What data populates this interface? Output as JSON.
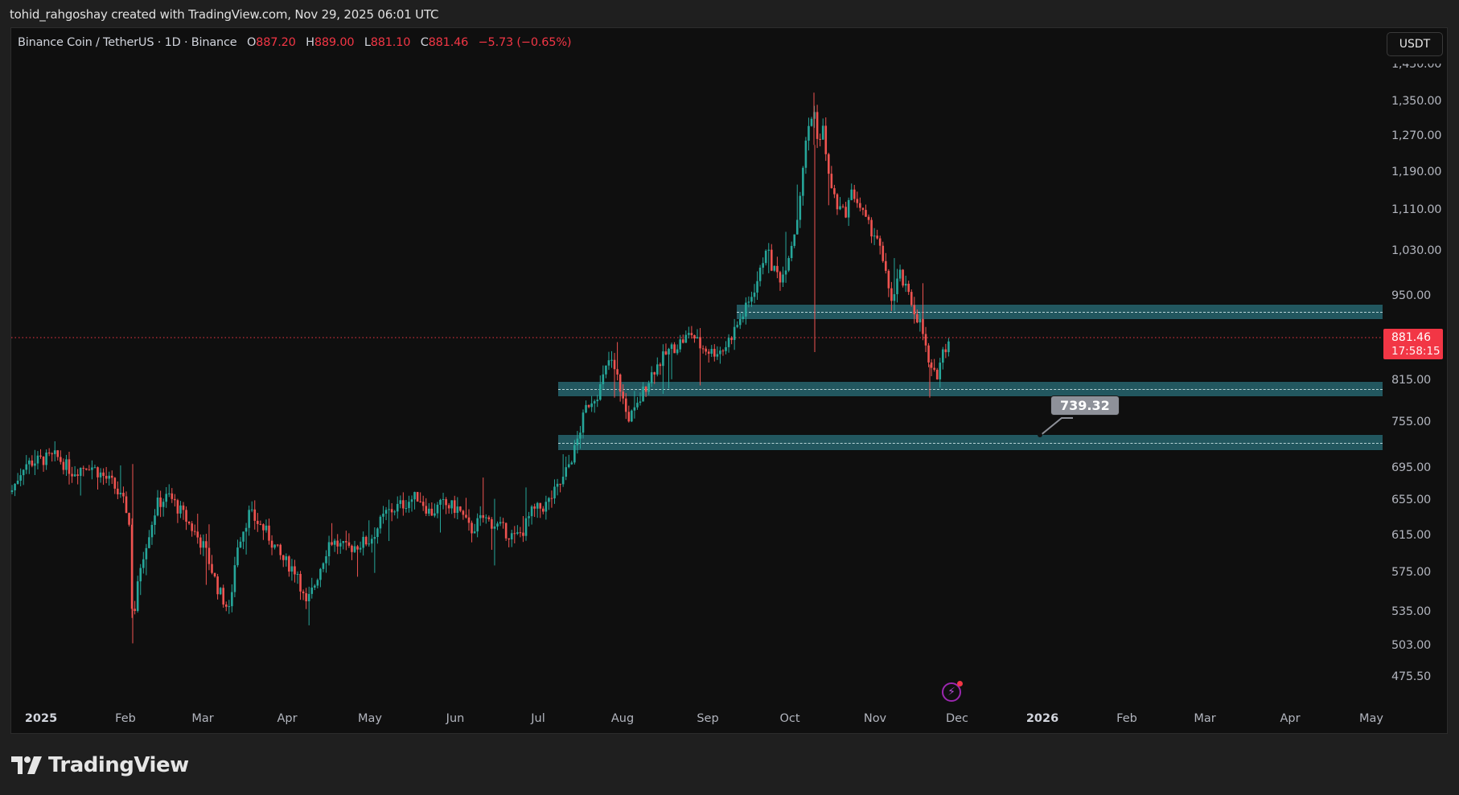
{
  "header": {
    "credit": "tohid_rahgoshay created with TradingView.com, Nov 29, 2025 06:01 UTC"
  },
  "legend": {
    "symbol": "Binance Coin / TetherUS · 1D · Binance",
    "open_label": "O",
    "open": "887.20",
    "high_label": "H",
    "high": "889.00",
    "low_label": "L",
    "low": "881.10",
    "close_label": "C",
    "close": "881.46",
    "change": "−5.73 (−0.65%)"
  },
  "currency_button": "USDT",
  "last_price": {
    "value": "881.46",
    "countdown": "17:58:15"
  },
  "colors": {
    "up": "#26a69a",
    "down": "#ef5350",
    "zone": "#22575f",
    "price_line": "#f23645",
    "background": "#0f0f0f"
  },
  "callout": {
    "label": "739.32"
  },
  "logo": {
    "text": "TradingView"
  },
  "chart_data": {
    "type": "candlestick",
    "title": "Binance Coin / TetherUS · 1D · Binance",
    "xlabel": "",
    "ylabel": "USDT",
    "price_axis_ticks": [
      "1,450.00",
      "1,350.00",
      "1,270.00",
      "1,190.00",
      "1,110.00",
      "1,030.00",
      "950.00",
      "815.00",
      "755.00",
      "695.00",
      "655.00",
      "615.00",
      "575.00",
      "535.00",
      "503.00",
      "475.50"
    ],
    "time_axis_ticks": [
      "2025",
      "Feb",
      "Mar",
      "Apr",
      "May",
      "Jun",
      "Jul",
      "Aug",
      "Sep",
      "Oct",
      "Nov",
      "Dec",
      "2026",
      "Feb",
      "Mar",
      "Apr",
      "May"
    ],
    "ylim": [
      460,
      1470
    ],
    "last_price": 881.46,
    "zones": [
      {
        "name": "resistance-zone",
        "low": 905,
        "high": 930,
        "mid": 918,
        "start": "Sep"
      },
      {
        "name": "support-zone-upper",
        "low": 790,
        "high": 815,
        "mid": 803,
        "start": "Jul"
      },
      {
        "name": "support-zone-lower",
        "low": 725,
        "high": 752,
        "mid": 739.32,
        "start": "Jul"
      }
    ],
    "monthly_path": {
      "months": [
        "Jan",
        "Feb",
        "Mar",
        "Apr",
        "May",
        "Jun",
        "Jul",
        "Aug",
        "Sep",
        "Oct",
        "Nov"
      ],
      "approx_close": [
        690,
        585,
        605,
        600,
        650,
        645,
        800,
        850,
        1000,
        1100,
        881
      ]
    },
    "key_points": [
      {
        "date": "Jan start",
        "price": 690
      },
      {
        "date": "Feb low",
        "price": 510
      },
      {
        "date": "Mar low",
        "price": 515
      },
      {
        "date": "Apr low",
        "price": 535
      },
      {
        "date": "May high",
        "price": 690
      },
      {
        "date": "Jun low",
        "price": 600
      },
      {
        "date": "Jul end",
        "price": 855
      },
      {
        "date": "Aug low",
        "price": 740
      },
      {
        "date": "Aug high",
        "price": 900
      },
      {
        "date": "Oct high",
        "price": 1370
      },
      {
        "date": "Oct wick low",
        "price": 860
      },
      {
        "date": "Nov low",
        "price": 790
      },
      {
        "date": "Nov 29 close",
        "price": 881.46
      }
    ]
  }
}
